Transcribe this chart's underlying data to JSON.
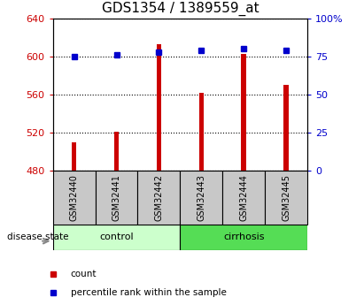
{
  "title": "GDS1354 / 1389559_at",
  "samples": [
    "GSM32440",
    "GSM32441",
    "GSM32442",
    "GSM32443",
    "GSM32444",
    "GSM32445"
  ],
  "counts": [
    510,
    521,
    613,
    562,
    603,
    570
  ],
  "percentiles": [
    75,
    76,
    78,
    79,
    80,
    79
  ],
  "ylim_left": [
    480,
    640
  ],
  "ylim_right": [
    0,
    100
  ],
  "yticks_left": [
    480,
    520,
    560,
    600,
    640
  ],
  "yticks_right": [
    0,
    25,
    50,
    75,
    100
  ],
  "ytick_labels_right": [
    "0",
    "25",
    "50",
    "75",
    "100%"
  ],
  "bar_color": "#cc0000",
  "dot_color": "#0000cc",
  "bar_bottom": 480,
  "bar_width": 0.12,
  "sample_box_color": "#c8c8c8",
  "control_bg": "#ccffcc",
  "cirrhosis_bg": "#55dd55",
  "title_fontsize": 11,
  "left_color": "#cc0000",
  "right_color": "#0000cc"
}
